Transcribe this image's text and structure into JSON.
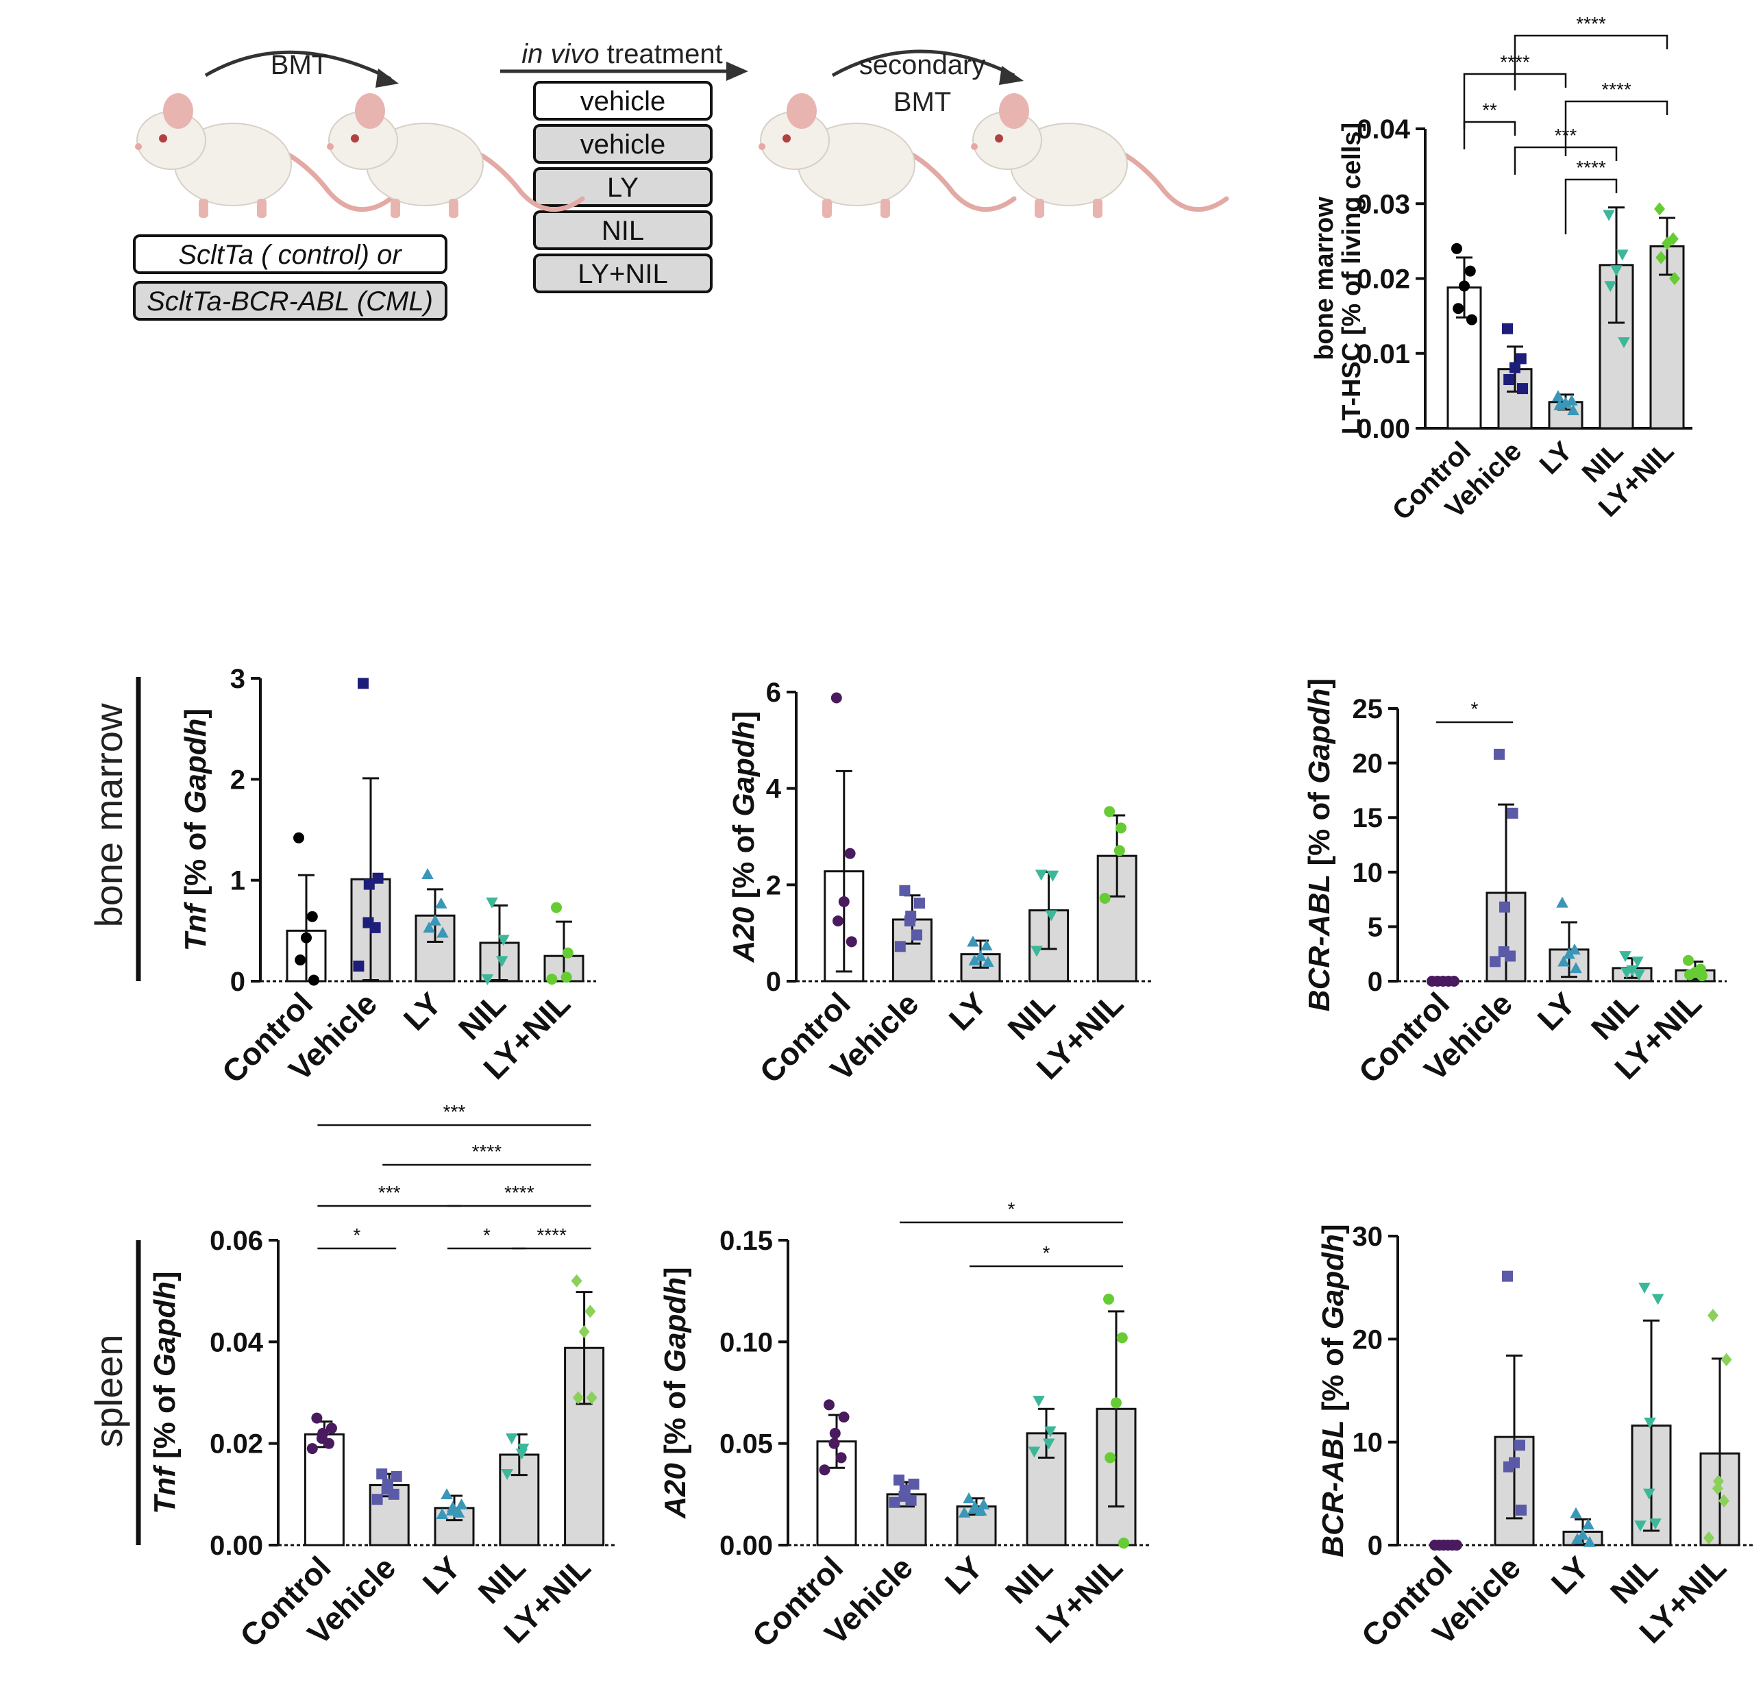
{
  "schematic": {
    "arrow1_label": "BMT",
    "arrow2_label_italic": "in vivo",
    "arrow2_label_rest": " treatment",
    "arrow3_label_line1": "secondary",
    "arrow3_label_line2": "BMT",
    "donor_labels": [
      "ScltTa ( control) or",
      "ScltTa-BCR-ABL (CML)"
    ],
    "treatments": [
      "vehicle",
      "vehicle",
      "LY",
      "NIL",
      "LY+NIL"
    ],
    "colors": {
      "box_fill_first": "#ffffff",
      "box_fill_rest": "#d9d9d9",
      "mouse_body": "#f3efe9",
      "mouse_ear": "#e8b4b0"
    }
  },
  "row_labels": {
    "bone_marrow": "bone marrow",
    "spleen": "spleen"
  },
  "chart_data": [
    {
      "id": "lthsc",
      "type": "bar",
      "categories": [
        "Control",
        "Vehicle",
        "LY",
        "NIL",
        "LY+NIL"
      ],
      "ylabel_lines": [
        "bone marrow",
        "LT-HSC [% of living cells]"
      ],
      "ylim": [
        0,
        0.04
      ],
      "yticks": [
        "0.00",
        "0.01",
        "0.02",
        "0.03",
        "0.04"
      ],
      "values": [
        0.0188,
        0.0079,
        0.0035,
        0.0218,
        0.0243
      ],
      "errors": [
        0.004,
        0.003,
        0.001,
        0.0077,
        0.0038
      ],
      "points": [
        [
          0.024,
          0.021,
          0.019,
          0.016,
          0.0145
        ],
        [
          0.0133,
          0.0093,
          0.0081,
          0.0065,
          0.0053
        ],
        [
          0.0043,
          0.0037,
          0.0034,
          0.0031,
          0.0024
        ],
        [
          0.0285,
          0.0232,
          0.0211,
          0.019,
          0.0115
        ],
        [
          0.0293,
          0.0253,
          0.0247,
          0.0228,
          0.02
        ]
      ],
      "markers": [
        "circle",
        "square",
        "triangle-up",
        "triangle-down",
        "diamond"
      ],
      "colors": [
        "#000000",
        "#1d1d7a",
        "#3a97b8",
        "#3bb89a",
        "#66cc33"
      ],
      "significance": [
        {
          "from": "Control",
          "to": "Vehicle",
          "label": "**"
        },
        {
          "from": "Control",
          "to": "LY",
          "label": "****"
        },
        {
          "from": "Vehicle",
          "to": "NIL",
          "label": "***"
        },
        {
          "from": "Vehicle",
          "to": "LY+NIL",
          "label": "****"
        },
        {
          "from": "LY",
          "to": "NIL",
          "label": "****"
        },
        {
          "from": "LY",
          "to": "LY+NIL",
          "label": "****"
        }
      ]
    },
    {
      "id": "bm-tnf",
      "type": "bar",
      "categories": [
        "Control",
        "Vehicle",
        "LY",
        "NIL",
        "LY+NIL"
      ],
      "ylabel_italic": "Tnf",
      "ylabel_rest": " [% of ",
      "ylabel_italic2": "Gapdh",
      "ylabel_end": "]",
      "ylim": [
        0,
        3
      ],
      "yticks": [
        "0",
        "1",
        "2",
        "3"
      ],
      "values": [
        0.5,
        1.01,
        0.65,
        0.38,
        0.25
      ],
      "errors": [
        0.55,
        1.0,
        0.26,
        0.37,
        0.34
      ],
      "points": [
        [
          1.42,
          0.64,
          0.43,
          0.21,
          0.01
        ],
        [
          2.95,
          1.02,
          0.96,
          0.58,
          0.53,
          0.15
        ],
        [
          1.06,
          0.77,
          0.6,
          0.53,
          0.48
        ],
        [
          0.78,
          0.41,
          0.2,
          0.02
        ],
        [
          0.73,
          0.28,
          0.04,
          0.02
        ]
      ],
      "markers": [
        "circle",
        "square",
        "triangle-up",
        "triangle-down",
        "circle"
      ],
      "colors": [
        "#000000",
        "#1d1d7a",
        "#3a97b8",
        "#3bb89a",
        "#66cc33"
      ],
      "significance": []
    },
    {
      "id": "bm-a20",
      "type": "bar",
      "categories": [
        "Control",
        "Vehicle",
        "LY",
        "NIL",
        "LY+NIL"
      ],
      "ylabel_italic": "A20",
      "ylabel_rest": " [% of ",
      "ylabel_italic2": "Gapdh",
      "ylabel_end": "]",
      "ylim": [
        0,
        6
      ],
      "yticks": [
        "0",
        "2",
        "4",
        "6"
      ],
      "values": [
        2.28,
        1.28,
        0.56,
        1.47,
        2.6
      ],
      "errors": [
        2.08,
        0.5,
        0.28,
        0.8,
        0.84
      ],
      "points": [
        [
          5.88,
          2.65,
          1.65,
          1.25,
          0.82
        ],
        [
          1.88,
          1.62,
          1.35,
          1.25,
          0.96,
          0.72
        ],
        [
          0.82,
          0.74,
          0.52,
          0.43,
          0.4
        ],
        [
          2.21,
          2.19,
          1.37,
          0.63
        ],
        [
          3.52,
          3.18,
          2.71,
          1.72
        ]
      ],
      "markers": [
        "circle",
        "square",
        "triangle-up",
        "triangle-down",
        "circle"
      ],
      "colors": [
        "#4a1a5e",
        "#5a5aa8",
        "#3a97b8",
        "#3bb89a",
        "#66cc33"
      ],
      "significance": []
    },
    {
      "id": "bm-bcrabl",
      "type": "bar",
      "categories": [
        "Control",
        "Vehicle",
        "LY",
        "NIL",
        "LY+NIL"
      ],
      "ylabel_italic": "BCR-ABL",
      "ylabel_rest": " [% of ",
      "ylabel_italic2": "Gapdh",
      "ylabel_end": "]",
      "ylim": [
        0,
        25
      ],
      "yticks": [
        "0",
        "5",
        "10",
        "15",
        "20",
        "25"
      ],
      "values": [
        0.0,
        8.1,
        2.9,
        1.2,
        1.0
      ],
      "errors": [
        0.0,
        8.1,
        2.5,
        0.9,
        0.8
      ],
      "points": [
        [
          0,
          0,
          0,
          0,
          0
        ],
        [
          20.8,
          15.4,
          6.8,
          2.7,
          2.3,
          1.8
        ],
        [
          7.2,
          2.9,
          2.5,
          1.8,
          1.2
        ],
        [
          2.3,
          1.8,
          1.0,
          0.8,
          0.6
        ],
        [
          1.9,
          1.1,
          0.8,
          0.6,
          0.5
        ]
      ],
      "markers": [
        "circle",
        "square",
        "triangle-up",
        "triangle-down",
        "circle"
      ],
      "colors": [
        "#4a1a5e",
        "#5a5aa8",
        "#3a97b8",
        "#3bb89a",
        "#66cc33"
      ],
      "significance": [
        {
          "from": "Control",
          "to": "Vehicle",
          "label": "*"
        }
      ]
    },
    {
      "id": "sp-tnf",
      "type": "bar",
      "categories": [
        "Control",
        "Vehicle",
        "LY",
        "NIL",
        "LY+NIL"
      ],
      "ylabel_italic": "Tnf",
      "ylabel_rest": " [% of ",
      "ylabel_italic2": "Gapdh",
      "ylabel_end": "]",
      "ylim": [
        0,
        0.06
      ],
      "yticks": [
        "0.00",
        "0.02",
        "0.04",
        "0.06"
      ],
      "values": [
        0.0218,
        0.0118,
        0.0073,
        0.0178,
        0.0388
      ],
      "errors": [
        0.0025,
        0.0022,
        0.0024,
        0.004,
        0.011
      ],
      "points": [
        [
          0.025,
          0.023,
          0.022,
          0.021,
          0.02,
          0.019
        ],
        [
          0.014,
          0.0135,
          0.012,
          0.011,
          0.01,
          0.009
        ],
        [
          0.01,
          0.008,
          0.0075,
          0.0068,
          0.0064,
          0.0061
        ],
        [
          0.021,
          0.019,
          0.018,
          0.014
        ],
        [
          0.052,
          0.046,
          0.042,
          0.029,
          0.029
        ]
      ],
      "markers": [
        "circle",
        "square",
        "triangle-up",
        "triangle-down",
        "diamond"
      ],
      "colors": [
        "#4a1a5e",
        "#5a5aa8",
        "#3a97b8",
        "#3bb89a",
        "#8bd05a"
      ],
      "significance": [
        {
          "from": "Control",
          "to": "Vehicle",
          "label": "*"
        },
        {
          "from": "LY",
          "to": "NIL",
          "label": "*"
        },
        {
          "from": "NIL",
          "to": "LY+NIL",
          "label": "****"
        },
        {
          "from": "Control",
          "to": "LY",
          "label": "***"
        },
        {
          "from": "LY",
          "to": "LY+NIL",
          "label": "****"
        },
        {
          "from": "Vehicle",
          "to": "LY+NIL",
          "label": "****"
        },
        {
          "from": "Control",
          "to": "LY+NIL",
          "label": "***"
        }
      ]
    },
    {
      "id": "sp-a20",
      "type": "bar",
      "categories": [
        "Control",
        "Vehicle",
        "LY",
        "NIL",
        "LY+NIL"
      ],
      "ylabel_italic": "A20",
      "ylabel_rest": " [% of ",
      "ylabel_italic2": "Gapdh",
      "ylabel_end": "]",
      "ylim": [
        0,
        0.15
      ],
      "yticks": [
        "0.00",
        "0.05",
        "0.10",
        "0.15"
      ],
      "values": [
        0.051,
        0.025,
        0.019,
        0.055,
        0.067
      ],
      "errors": [
        0.013,
        0.006,
        0.004,
        0.012,
        0.048
      ],
      "points": [
        [
          0.069,
          0.063,
          0.055,
          0.05,
          0.043,
          0.037
        ],
        [
          0.032,
          0.03,
          0.027,
          0.024,
          0.022,
          0.021
        ],
        [
          0.023,
          0.02,
          0.019,
          0.018,
          0.017,
          0.016
        ],
        [
          0.071,
          0.056,
          0.05,
          0.046
        ],
        [
          0.121,
          0.102,
          0.07,
          0.043,
          0.001
        ]
      ],
      "markers": [
        "circle",
        "square",
        "triangle-up",
        "triangle-down",
        "circle"
      ],
      "colors": [
        "#4a1a5e",
        "#5a5aa8",
        "#3a97b8",
        "#3bb89a",
        "#66cc33"
      ],
      "significance": [
        {
          "from": "LY",
          "to": "LY+NIL",
          "label": "*"
        },
        {
          "from": "Vehicle",
          "to": "LY+NIL",
          "label": "*"
        }
      ]
    },
    {
      "id": "sp-bcrabl",
      "type": "bar",
      "categories": [
        "Control",
        "Vehicle",
        "LY",
        "NIL",
        "LY+NIL"
      ],
      "ylabel_italic": "BCR-ABL",
      "ylabel_rest": " [% of ",
      "ylabel_italic2": "Gapdh",
      "ylabel_end": "]",
      "ylim": [
        0,
        30
      ],
      "yticks": [
        "0",
        "10",
        "20",
        "30"
      ],
      "values": [
        0.0,
        10.5,
        1.3,
        11.6,
        8.9
      ],
      "errors": [
        0.0,
        7.9,
        1.2,
        10.2,
        9.2
      ],
      "points": [
        [
          0,
          0,
          0,
          0,
          0,
          0
        ],
        [
          26.1,
          9.7,
          8.0,
          7.6,
          3.4
        ],
        [
          3.1,
          2.0,
          1.0,
          0.6,
          0.3
        ],
        [
          25.0,
          23.9,
          11.9,
          5.0,
          2.1,
          1.9
        ],
        [
          22.3,
          18.0,
          6.2,
          5.5,
          4.3,
          0.7
        ]
      ],
      "markers": [
        "circle",
        "square",
        "triangle-up",
        "triangle-down",
        "diamond"
      ],
      "colors": [
        "#4a1a5e",
        "#5a5aa8",
        "#3a97b8",
        "#3bb89a",
        "#8bd05a"
      ],
      "significance": []
    }
  ]
}
